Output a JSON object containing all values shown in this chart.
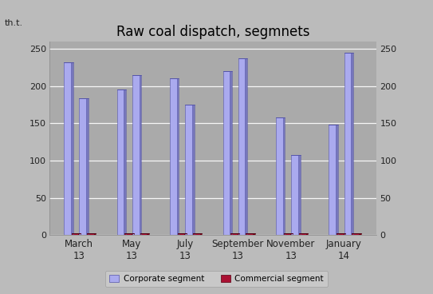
{
  "title": "Raw coal dispatch, segmnets",
  "ylabel_left": "th.t.",
  "categories": [
    "March\n13",
    "May\n13",
    "July\n13",
    "September\n13",
    "November\n13",
    "January\n14"
  ],
  "corporate": [
    232,
    183,
    195,
    215,
    210,
    175,
    220,
    237,
    158,
    107,
    148,
    245
  ],
  "commercial": [
    3,
    3,
    3,
    3,
    3,
    3,
    3,
    3,
    3,
    3,
    3,
    3
  ],
  "corp_face": "#aaaaee",
  "corp_side": "#7777bb",
  "corp_top": "#ddddff",
  "corp_edge": "#5555aa",
  "comm_face": "#aa1133",
  "comm_side": "#770011",
  "comm_edge": "#550011",
  "bg_outer": "#bbbbbb",
  "bg_plot": "#aaaaaa",
  "grid_color": "#ffffff",
  "ylim": [
    0,
    260
  ],
  "yticks": [
    0,
    50,
    100,
    150,
    200,
    250
  ],
  "title_fontsize": 12,
  "tick_fontsize": 8,
  "legend_labels": [
    "Corporate segment",
    "Commercial segment"
  ]
}
